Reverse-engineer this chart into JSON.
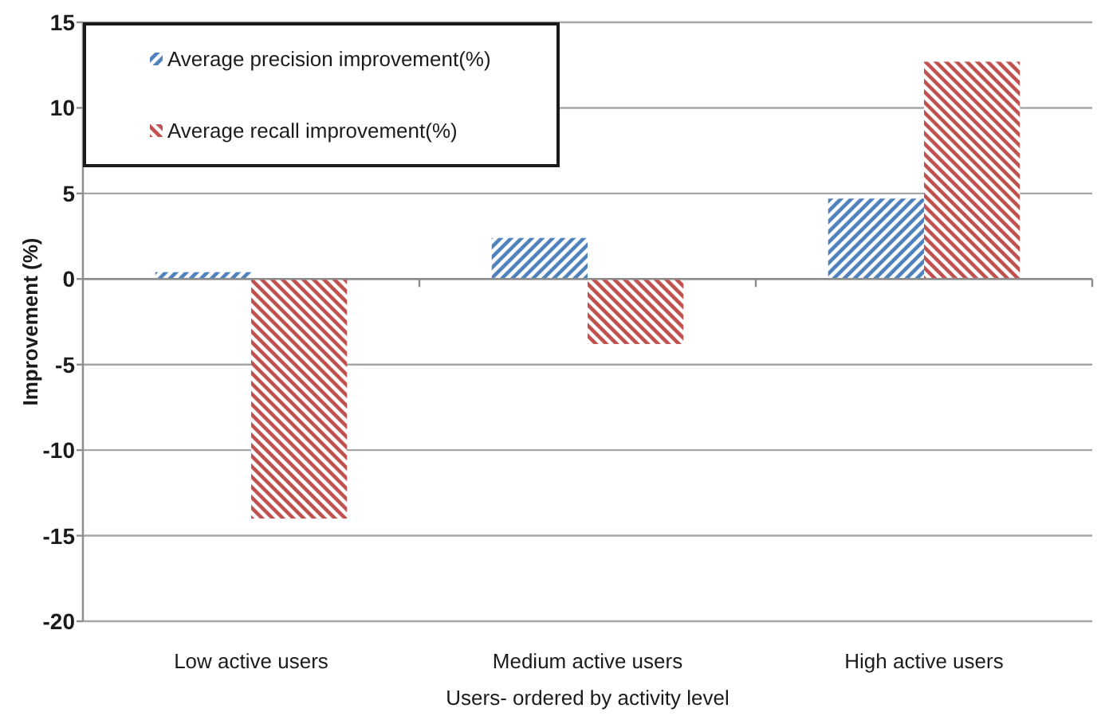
{
  "chart_data": {
    "type": "bar",
    "xlabel": "Users- ordered by activity level",
    "ylabel": "Improvement (%)",
    "categories": [
      "Low active users",
      "Medium active users",
      "High active users"
    ],
    "series": [
      {
        "name": "Average precision improvement(%)",
        "color": "#4f81bd",
        "values": [
          0.4,
          2.4,
          4.7
        ]
      },
      {
        "name": "Average recall improvement(%)",
        "color": "#c0504d",
        "values": [
          -14,
          -3.8,
          12.7
        ]
      }
    ],
    "ylim": [
      -20,
      15
    ],
    "yticks": [
      -20,
      -15,
      -10,
      -5,
      0,
      5,
      10,
      15
    ],
    "grid": "y",
    "legend": "top left"
  }
}
